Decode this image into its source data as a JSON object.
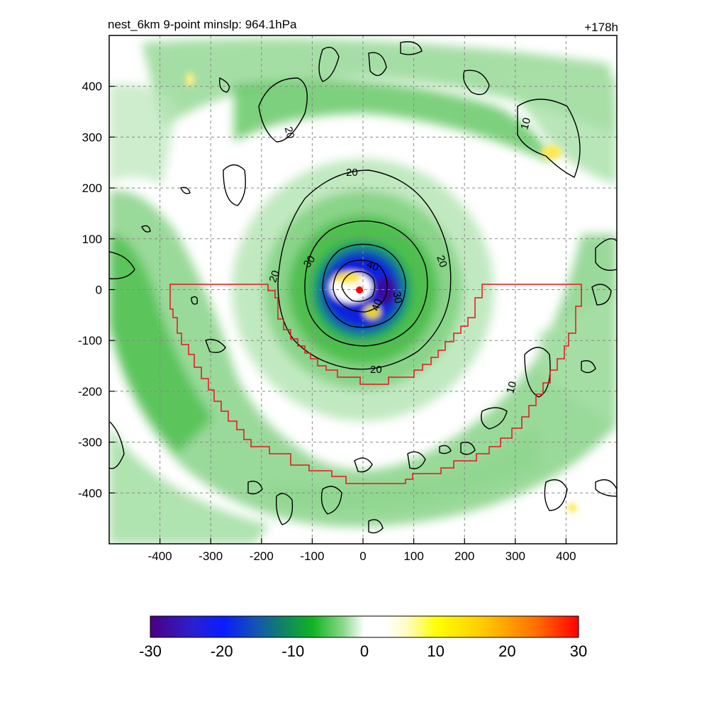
{
  "chart_data": {
    "type": "heatmap",
    "title": "nest_6km  9-point minslp: 964.1hPa",
    "time_label": "+178h",
    "x_ticks": [
      -400,
      -300,
      -200,
      -100,
      0,
      100,
      200,
      300,
      400
    ],
    "y_ticks": [
      400,
      300,
      200,
      100,
      0,
      -100,
      -200,
      -300,
      -400
    ],
    "xlim": [
      -500,
      500
    ],
    "ylim": [
      -500,
      500
    ],
    "grid": true,
    "colorbar": {
      "range": [
        -30,
        30
      ],
      "ticks": [
        -30,
        -20,
        -10,
        0,
        10,
        20,
        30
      ]
    },
    "contour_labels": [
      "20",
      "20",
      "20",
      "20",
      "20",
      "30",
      "40",
      "30",
      "40",
      "10",
      "10"
    ],
    "center_marker_color": "#ff0000",
    "boundary_color": "#e8141c"
  }
}
